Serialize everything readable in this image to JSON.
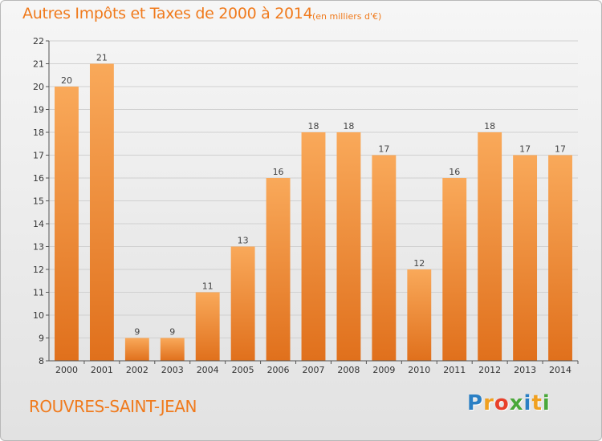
{
  "title": "Autres Impôts et Taxes de 2000 à 2014",
  "subtitle": "(en milliers d'€)",
  "commune": "ROUVRES-SAINT-JEAN",
  "logo": {
    "letters": [
      "P",
      "r",
      "o",
      "x",
      "i",
      "t",
      "i"
    ],
    "colors": [
      "#2a7fc4",
      "#f0a020",
      "#e8402a",
      "#4aa83a",
      "#2a7fc4",
      "#f0a020",
      "#4aa83a"
    ]
  },
  "colors": {
    "bar_top": "#f9a95a",
    "bar_bottom": "#e0701c",
    "title": "#f07a1c",
    "grid": "#d0d0d0"
  },
  "chart_data": {
    "type": "bar",
    "title": "Autres Impôts et Taxes de 2000 à 2014",
    "subtitle": "(en milliers d'€)",
    "categories": [
      "2000",
      "2001",
      "2002",
      "2003",
      "2004",
      "2005",
      "2006",
      "2007",
      "2008",
      "2009",
      "2010",
      "2011",
      "2012",
      "2013",
      "2014"
    ],
    "values": [
      20,
      21,
      9,
      9,
      11,
      13,
      16,
      18,
      18,
      17,
      12,
      16,
      18,
      17,
      17
    ],
    "ylim": [
      8,
      22
    ],
    "yticks": [
      8,
      9,
      10,
      11,
      12,
      13,
      14,
      15,
      16,
      17,
      18,
      19,
      20,
      21,
      22
    ],
    "xlabel": "",
    "ylabel": "",
    "grid": true
  }
}
